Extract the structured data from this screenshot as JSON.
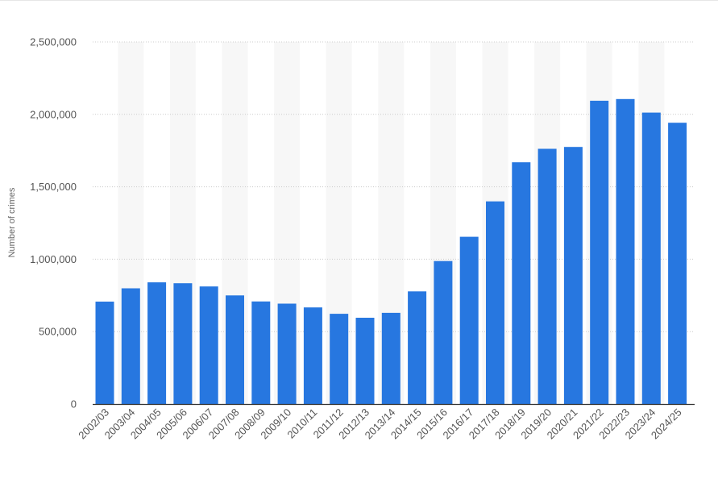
{
  "chart_data": {
    "type": "bar",
    "title": "",
    "xlabel": "",
    "ylabel": "Number of crimes",
    "ylim": [
      0,
      2500000
    ],
    "yticks": [
      0,
      500000,
      1000000,
      1500000,
      2000000,
      2500000
    ],
    "ytick_labels": [
      "0",
      "500,000",
      "1,000,000",
      "1,500,000",
      "2,000,000",
      "2,500,000"
    ],
    "grid": true,
    "legend": "none",
    "bar_color": "#2777e0",
    "band_color": "#f7f7f7",
    "categories": [
      "2002/03",
      "2003/04",
      "2004/05",
      "2005/06",
      "2006/07",
      "2007/08",
      "2008/09",
      "2009/10",
      "2010/11",
      "2011/12",
      "2012/13",
      "2013/14",
      "2014/15",
      "2015/16",
      "2016/17",
      "2017/18",
      "2018/19",
      "2019/20",
      "2020/21",
      "2021/22",
      "2022/23",
      "2023/24",
      "2024/25"
    ],
    "values": [
      707000,
      799000,
      840000,
      834000,
      812000,
      750000,
      708000,
      693000,
      667000,
      623000,
      596000,
      630000,
      778000,
      987000,
      1155000,
      1399000,
      1669000,
      1762000,
      1775000,
      2094000,
      2106000,
      2012000,
      1942000
    ]
  }
}
